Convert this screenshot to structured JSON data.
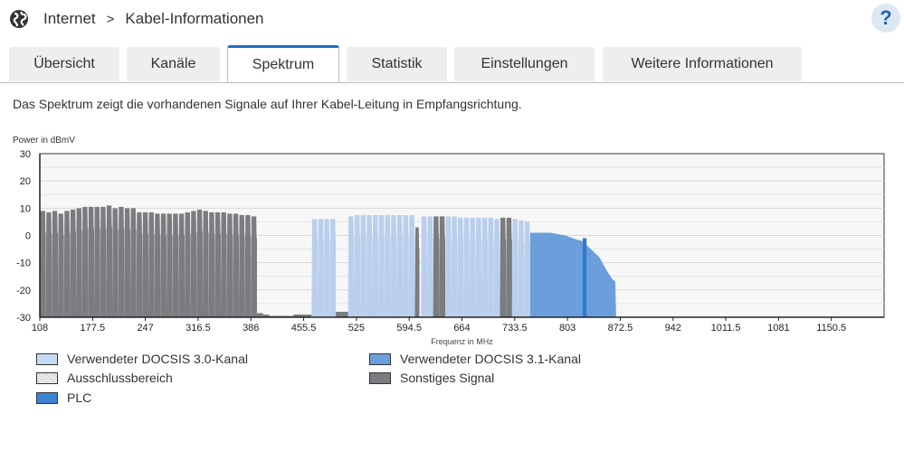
{
  "header": {
    "section": "Internet",
    "page": "Kabel-Informationen",
    "help": "?"
  },
  "tabs": [
    {
      "label": "Übersicht"
    },
    {
      "label": "Kanäle"
    },
    {
      "label": "Spektrum"
    },
    {
      "label": "Statistik"
    },
    {
      "label": "Einstellungen"
    },
    {
      "label": "Weitere Informationen"
    }
  ],
  "description": "Das Spektrum zeigt die vorhandenen Signale auf Ihrer Kabel-Leitung in Empfangsrichtung.",
  "colors": {
    "docsis30": "#b9cfec",
    "docsis31": "#6a9fdc",
    "plc": "#2f7ad0",
    "other": "#7b7c80",
    "exclusion": "#e6e6e6"
  },
  "legend": {
    "docsis30": "Verwendeter DOCSIS 3.0-Kanal",
    "docsis31": "Verwendeter DOCSIS 3.1-Kanal",
    "exclusion": "Ausschlussbereich",
    "other": "Sonstiges Signal",
    "plc": "PLC"
  },
  "chart_data": {
    "type": "area",
    "ylabel": "Power in dBmV",
    "xlabel": "Frequenz in MHz",
    "ylim": [
      -30,
      30
    ],
    "xlim": [
      108,
      1220
    ],
    "yticks": [
      "30",
      "20",
      "10",
      "0",
      "-10",
      "-20",
      "-30"
    ],
    "xticks": [
      "108",
      "177.5",
      "247",
      "316.5",
      "386",
      "455.5",
      "525",
      "594.5",
      "664",
      "733.5",
      "803",
      "872.5",
      "942",
      "1011.5",
      "1081",
      "1150.5"
    ],
    "bands": [
      {
        "type": "other",
        "from": 108,
        "to": 394,
        "levels": [
          9,
          8.5,
          9,
          8,
          9,
          9.5,
          10,
          10.5,
          10.5,
          10.5,
          10.5,
          11,
          10,
          10.5,
          10,
          10,
          8.5,
          8.5,
          8.5,
          8,
          8,
          8,
          8,
          8,
          8.5,
          9,
          9.5,
          9,
          8.5,
          8.5,
          8.5,
          8,
          8,
          7.5,
          7.5,
          7
        ]
      },
      {
        "type": "noise",
        "from": 394,
        "to": 466,
        "levels": [
          -28.5,
          -29,
          -29.5,
          -29.5,
          -29.5,
          -29.5,
          -29,
          -29,
          -29
        ]
      },
      {
        "type": "docsis30",
        "from": 466,
        "to": 498,
        "levels": [
          6,
          6,
          6,
          6
        ]
      },
      {
        "type": "noise",
        "from": 498,
        "to": 514,
        "levels": [
          -28,
          -28
        ]
      },
      {
        "type": "docsis30",
        "from": 514,
        "to": 602,
        "levels": [
          7,
          7.5,
          7.5,
          7.5,
          7.5,
          7.5,
          7.5,
          7.5,
          7.5,
          7.5,
          7.5
        ]
      },
      {
        "type": "other",
        "from": 602,
        "to": 608,
        "levels": [
          3
        ]
      },
      {
        "type": "docsis30",
        "from": 610,
        "to": 626,
        "levels": [
          7,
          7
        ]
      },
      {
        "type": "other",
        "from": 626,
        "to": 642,
        "levels": [
          7,
          7
        ]
      },
      {
        "type": "docsis30",
        "from": 642,
        "to": 714,
        "levels": [
          7,
          7,
          6.5,
          6.5,
          6.5,
          6.5,
          6.5,
          6.5,
          6
        ]
      },
      {
        "type": "other",
        "from": 714,
        "to": 730,
        "levels": [
          6.5,
          6.5
        ]
      },
      {
        "type": "docsis30",
        "from": 730,
        "to": 754,
        "levels": [
          6,
          5.5,
          5
        ]
      }
    ],
    "ofdm": {
      "type": "docsis31",
      "points": [
        [
          754,
          1
        ],
        [
          780,
          1
        ],
        [
          800,
          0
        ],
        [
          815,
          -1.5
        ],
        [
          822,
          -2
        ],
        [
          830,
          -4
        ],
        [
          845,
          -8
        ],
        [
          855,
          -13
        ],
        [
          862,
          -16
        ],
        [
          866,
          -17
        ]
      ],
      "end": 867
    },
    "plc": {
      "from": 823,
      "to": 828,
      "level": -1
    }
  }
}
